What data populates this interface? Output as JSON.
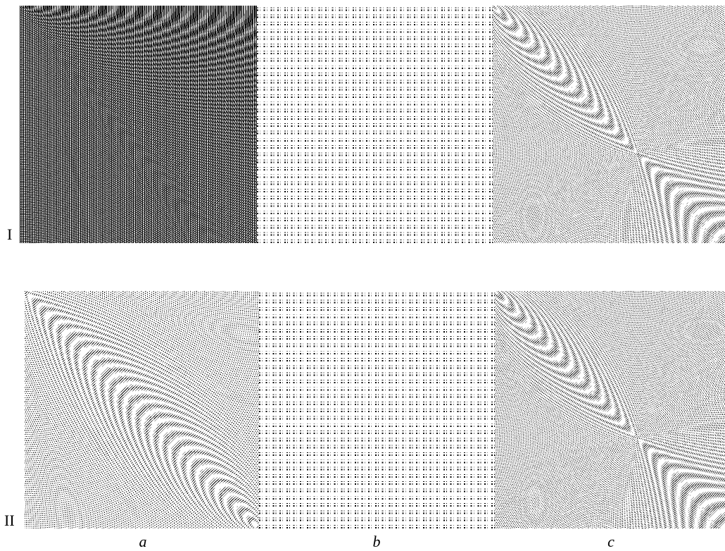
{
  "rows": [
    {
      "label": "I"
    },
    {
      "label": "II"
    }
  ],
  "columns": [
    "a",
    "b",
    "c"
  ]
}
